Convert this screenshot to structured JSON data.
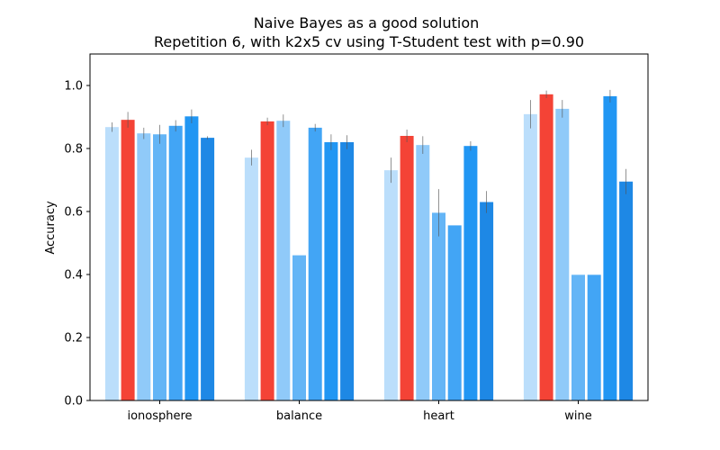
{
  "chart_data": {
    "type": "bar",
    "title": "Naive Bayes as a good solution",
    "subtitle": "Repetition 6, with k2x5 cv using T-Student test with p=0.90",
    "xlabel": "",
    "ylabel": "Accuracy",
    "ylim": [
      0,
      1.1
    ],
    "yticks": [
      "0.0",
      "0.2",
      "0.4",
      "0.6",
      "0.8",
      "1.0"
    ],
    "grid": false,
    "categories": [
      "ionosphere",
      "balance",
      "heart",
      "wine"
    ],
    "series": [
      {
        "color": "#bbdefb",
        "values": [
          0.868,
          0.771,
          0.731,
          0.909
        ],
        "errors": [
          0.015,
          0.025,
          0.04,
          0.045
        ]
      },
      {
        "color": "#f44336",
        "values": [
          0.891,
          0.886,
          0.84,
          0.972
        ],
        "errors": [
          0.025,
          0.012,
          0.02,
          0.012
        ]
      },
      {
        "color": "#90caf9",
        "values": [
          0.848,
          0.888,
          0.811,
          0.926
        ],
        "errors": [
          0.018,
          0.02,
          0.028,
          0.028
        ]
      },
      {
        "color": "#64b5f6",
        "values": [
          0.845,
          0.461,
          0.596,
          0.399
        ],
        "errors": [
          0.03,
          0.0,
          0.075,
          0.0
        ]
      },
      {
        "color": "#42a5f5",
        "values": [
          0.872,
          0.866,
          0.556,
          0.399
        ],
        "errors": [
          0.018,
          0.012,
          0.0,
          0.0
        ]
      },
      {
        "color": "#2196f3",
        "values": [
          0.902,
          0.82,
          0.808,
          0.966
        ],
        "errors": [
          0.022,
          0.025,
          0.015,
          0.02
        ]
      },
      {
        "color": "#1e88e5",
        "values": [
          0.834,
          0.82,
          0.63,
          0.695
        ],
        "errors": [
          0.005,
          0.022,
          0.035,
          0.04
        ]
      }
    ]
  }
}
